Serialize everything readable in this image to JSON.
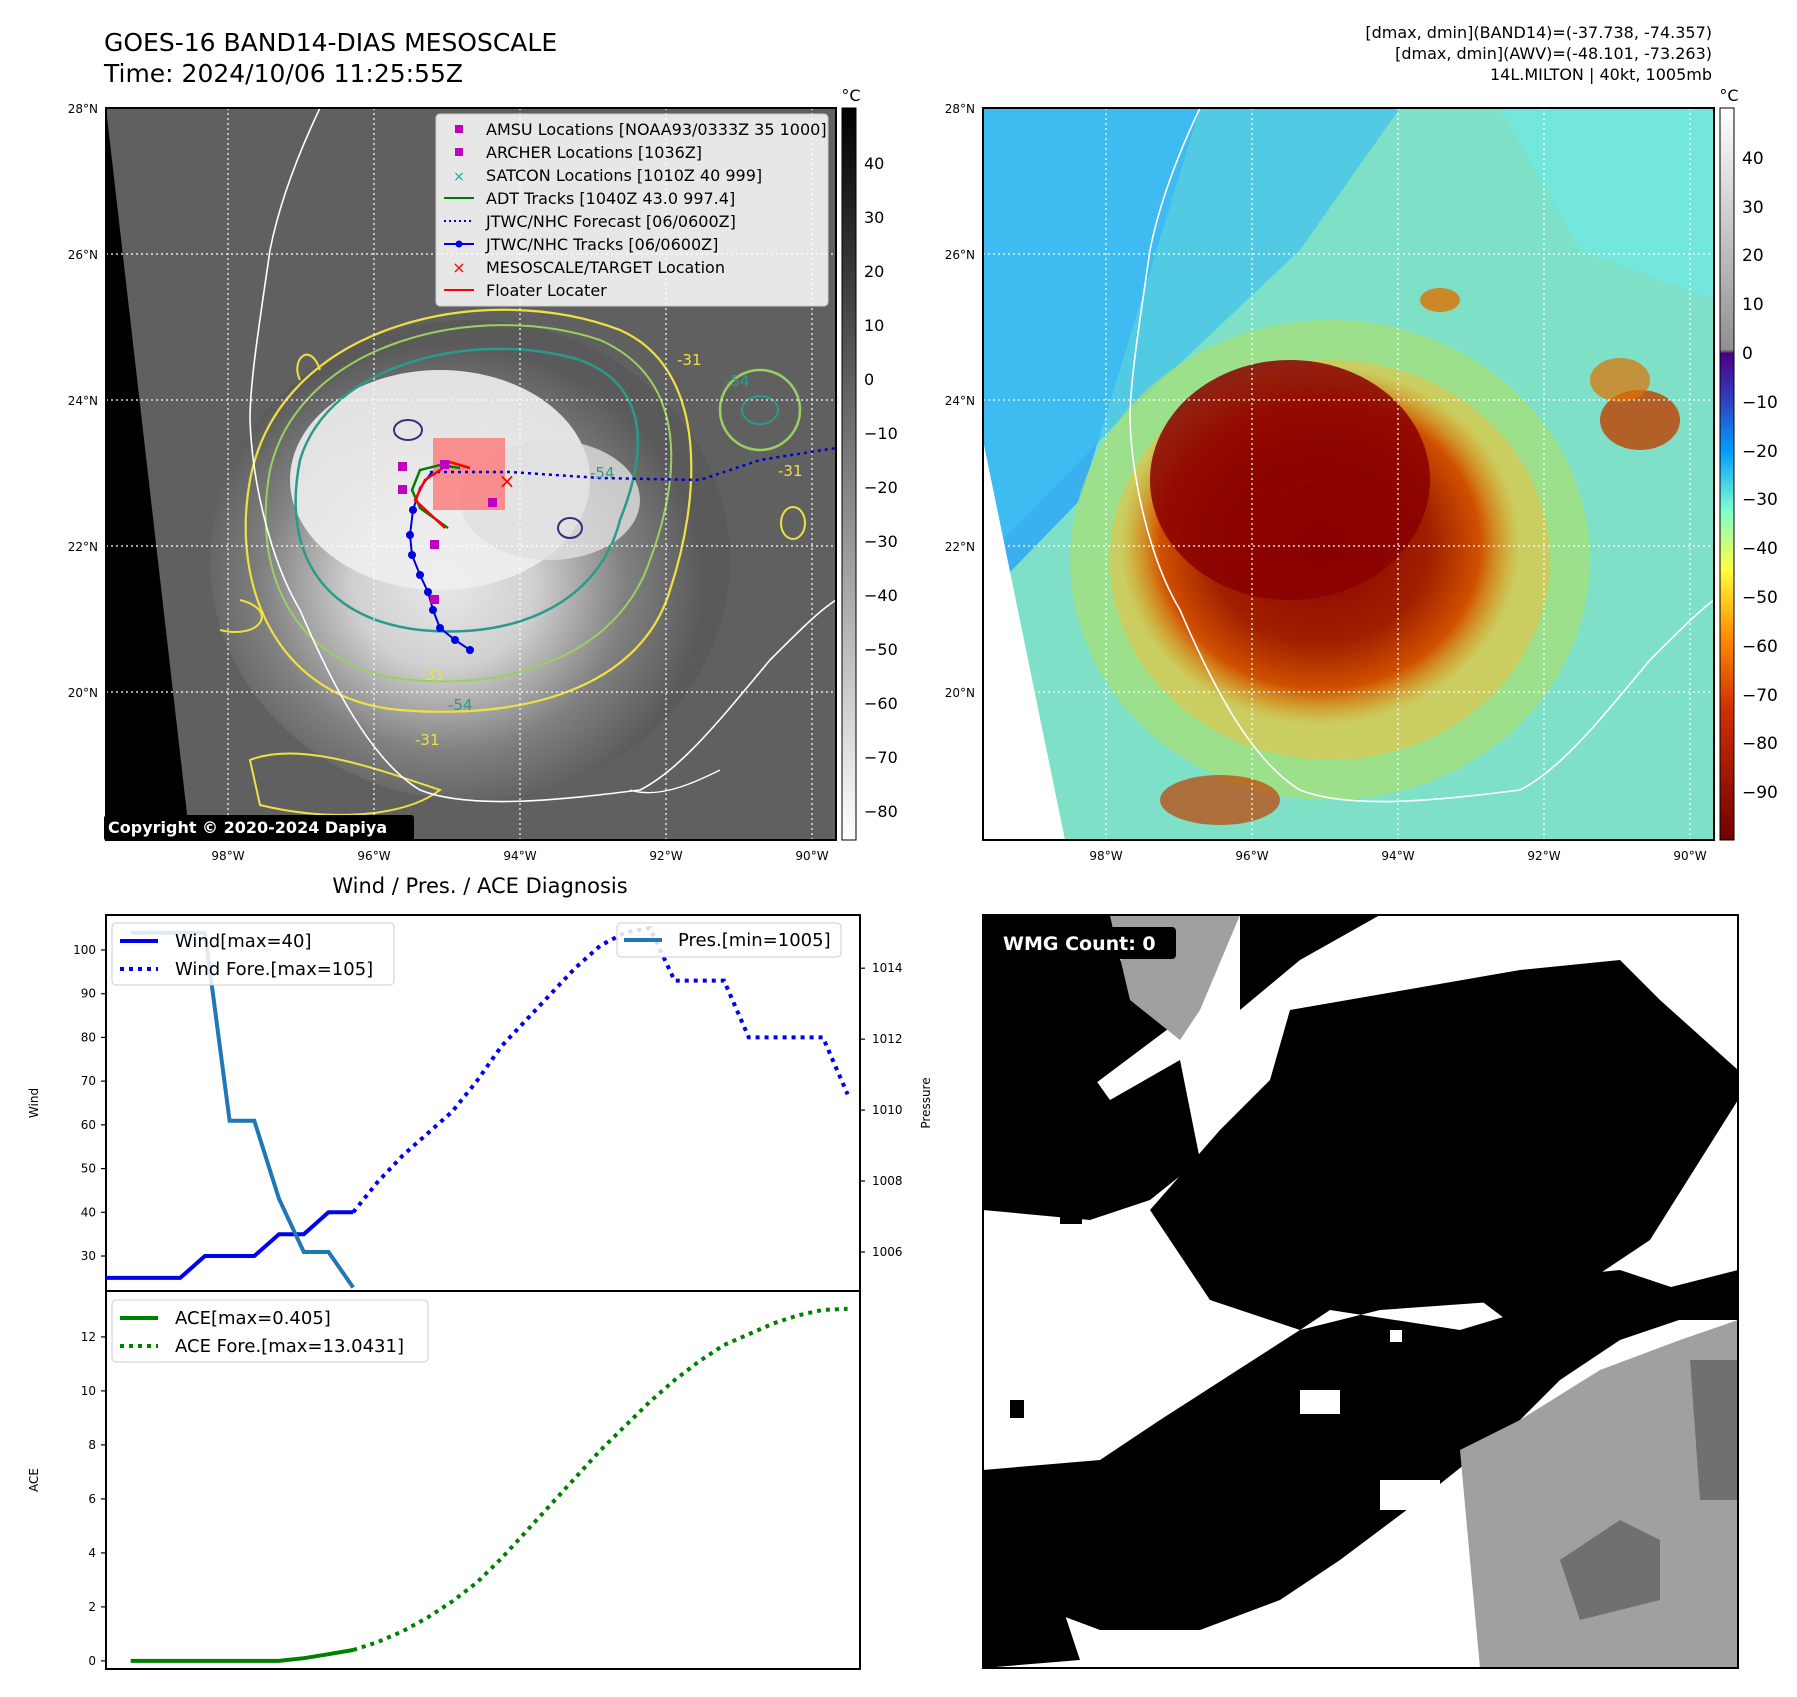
{
  "header": {
    "title_line1": "GOES-16 BAND14-DIAS MESOSCALE",
    "title_line2": "Time: 2024/10/06 11:25:55Z",
    "info_line1": "[dmax, dmin](BAND14)=(-37.738, -74.357)",
    "info_line2": "[dmax, dmin](AWV)=(-48.101, -73.263)",
    "info_line3": "14L.MILTON | 40kt, 1005mb"
  },
  "map_left": {
    "lat_ticks": [
      "28°N",
      "26°N",
      "24°N",
      "22°N",
      "20°N"
    ],
    "lon_ticks": [
      "98°W",
      "96°W",
      "94°W",
      "92°W",
      "90°W"
    ],
    "colorbar": {
      "unit": "°C",
      "ticks": [
        "40",
        "30",
        "20",
        "10",
        "0",
        "−10",
        "−20",
        "−30",
        "−40",
        "−50",
        "−60",
        "−70",
        "−80"
      ]
    },
    "contour_labels": [
      "-31",
      "-54",
      "-31",
      "-54",
      "-31",
      "-31",
      "-54"
    ],
    "copyright": "Copyright © 2020-2024 Dapiya",
    "legend": [
      {
        "label": "AMSU Locations [NOAA93/0333Z 35 1000]",
        "marker": "square",
        "color": "#c000c0"
      },
      {
        "label": "ARCHER Locations [1036Z]",
        "marker": "square",
        "color": "#c000c0"
      },
      {
        "label": "SATCON Locations [1010Z 40 999]",
        "marker": "x",
        "color": "#00b0b0"
      },
      {
        "label": "ADT Tracks [1040Z 43.0 997.4]",
        "marker": "line",
        "color": "#008000"
      },
      {
        "label": "JTWC/NHC Forecast [06/0600Z]",
        "marker": "dotted",
        "color": "#0000cc"
      },
      {
        "label": "JTWC/NHC Tracks [06/0600Z]",
        "marker": "line-dot",
        "color": "#0000dd"
      },
      {
        "label": "MESOSCALE/TARGET Location",
        "marker": "x",
        "color": "#ff0000"
      },
      {
        "label": "Floater Locater",
        "marker": "line",
        "color": "#ff0000"
      }
    ]
  },
  "map_right": {
    "lat_ticks": [
      "28°N",
      "26°N",
      "24°N",
      "22°N",
      "20°N"
    ],
    "lon_ticks": [
      "98°W",
      "96°W",
      "94°W",
      "92°W",
      "90°W"
    ],
    "colorbar": {
      "unit": "°C",
      "ticks": [
        "40",
        "30",
        "20",
        "10",
        "0",
        "−10",
        "−20",
        "−30",
        "−40",
        "−50",
        "−60",
        "−70",
        "−80",
        "−90"
      ]
    }
  },
  "wmg": {
    "label": "WMG Count: 0"
  },
  "colors": {
    "wind": "#0000ee",
    "pressure": "#1f77b4",
    "ace": "#008000"
  },
  "chart_data": [
    {
      "type": "line",
      "title": "Wind / Pres. / ACE Diagnosis",
      "ylabel": "Wind",
      "ylim": [
        22,
        108
      ],
      "yticks": [
        30,
        40,
        50,
        60,
        70,
        80,
        90,
        100
      ],
      "x_range": [
        0,
        30.5
      ],
      "series": [
        {
          "name": "Wind[max=40]",
          "style": "solid",
          "axis": "left",
          "x": [
            0,
            1,
            2,
            3,
            4,
            5,
            6,
            7,
            8,
            9,
            10
          ],
          "values": [
            25,
            25,
            25,
            25,
            30,
            30,
            30,
            35,
            35,
            40,
            40
          ]
        },
        {
          "name": "Wind Fore.[max=105]",
          "style": "dotted",
          "axis": "left",
          "x": [
            10,
            11,
            12,
            13,
            14,
            15,
            16,
            17,
            18,
            19,
            20,
            21,
            22,
            23,
            24,
            25,
            26,
            27,
            28,
            29,
            30
          ],
          "values": [
            40,
            47,
            53,
            58,
            63,
            70,
            78,
            84,
            90,
            96,
            101,
            104,
            105,
            93,
            93,
            93,
            80,
            80,
            80,
            80,
            67
          ]
        },
        {
          "name": "Pres.[min=1005]",
          "style": "solid",
          "axis": "right",
          "x": [
            1,
            2,
            3,
            4,
            5,
            6,
            7,
            8,
            9,
            10
          ],
          "values": [
            1015,
            1015,
            1015,
            1015,
            1009.7,
            1009.7,
            1007.5,
            1006,
            1006,
            1005
          ]
        }
      ],
      "y2label": "Pressure",
      "y2lim": [
        1004.9,
        1015.5
      ],
      "y2ticks": [
        1006,
        1008,
        1010,
        1012,
        1014
      ]
    },
    {
      "type": "line",
      "ylabel": "ACE",
      "ylim": [
        -0.3,
        13.7
      ],
      "yticks": [
        0,
        2,
        4,
        6,
        8,
        10,
        12
      ],
      "x_range": [
        0,
        30.5
      ],
      "series": [
        {
          "name": "ACE[max=0.405]",
          "style": "solid",
          "x": [
            1,
            2,
            3,
            4,
            5,
            6,
            7,
            8,
            9,
            10
          ],
          "values": [
            0,
            0,
            0,
            0,
            0,
            0,
            0,
            0.1,
            0.25,
            0.405
          ]
        },
        {
          "name": "ACE Fore.[max=13.0431]",
          "style": "dotted",
          "x": [
            10,
            11,
            12,
            13,
            14,
            15,
            16,
            17,
            18,
            19,
            20,
            21,
            22,
            23,
            24,
            25,
            26,
            27,
            28,
            29,
            30
          ],
          "values": [
            0.405,
            0.7,
            1.1,
            1.6,
            2.2,
            2.9,
            3.8,
            4.8,
            5.8,
            6.8,
            7.8,
            8.7,
            9.6,
            10.4,
            11.1,
            11.7,
            12.1,
            12.5,
            12.8,
            13.0,
            13.04
          ]
        }
      ]
    }
  ]
}
